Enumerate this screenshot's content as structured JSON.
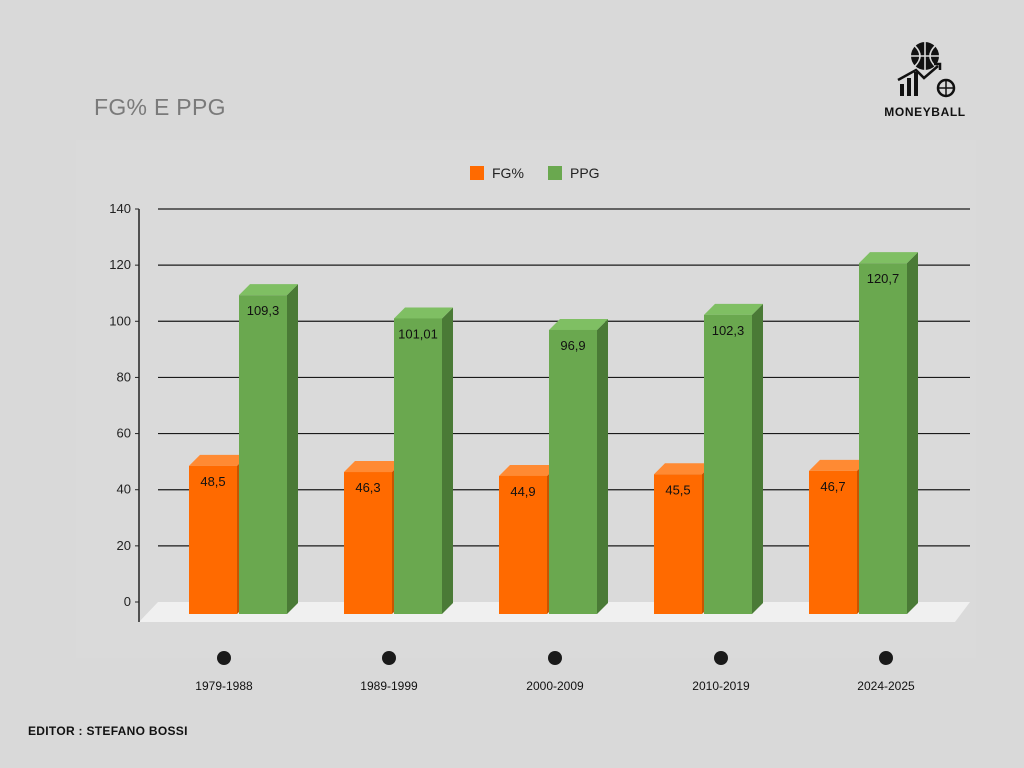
{
  "brand": {
    "name": "MONEYBALL"
  },
  "footer": {
    "editor": "EDITOR : STEFANO BOSSI"
  },
  "colors": {
    "fg": "#ff6a00",
    "fg_top": "#ff8a33",
    "fg_side": "#c95400",
    "ppg": "#6aa84f",
    "ppg_top": "#7fbf63",
    "ppg_side": "#4a7a36",
    "gridline": "#1a1a1a",
    "background": "#d9d9d9"
  },
  "chart_data": {
    "type": "bar",
    "title": "FG% E PPG",
    "categories": [
      "1979-1988",
      "1989-1999",
      "2000-2009",
      "2010-2019",
      "2024-2025"
    ],
    "series": [
      {
        "name": "FG%",
        "values": [
          48.5,
          46.3,
          44.9,
          45.5,
          46.7
        ],
        "labels": [
          "48,5",
          "46,3",
          "44,9",
          "45,5",
          "46,7"
        ]
      },
      {
        "name": "PPG",
        "values": [
          109.3,
          101.01,
          96.9,
          102.3,
          120.7
        ],
        "labels": [
          "109,3",
          "101,01",
          "96,9",
          "102,3",
          "120,7"
        ]
      }
    ],
    "ylim": [
      0,
      140
    ],
    "yticks": [
      0,
      20,
      40,
      60,
      80,
      100,
      120,
      140
    ],
    "xlabel": "",
    "ylabel": "",
    "grid": true,
    "legend": "top-center"
  }
}
